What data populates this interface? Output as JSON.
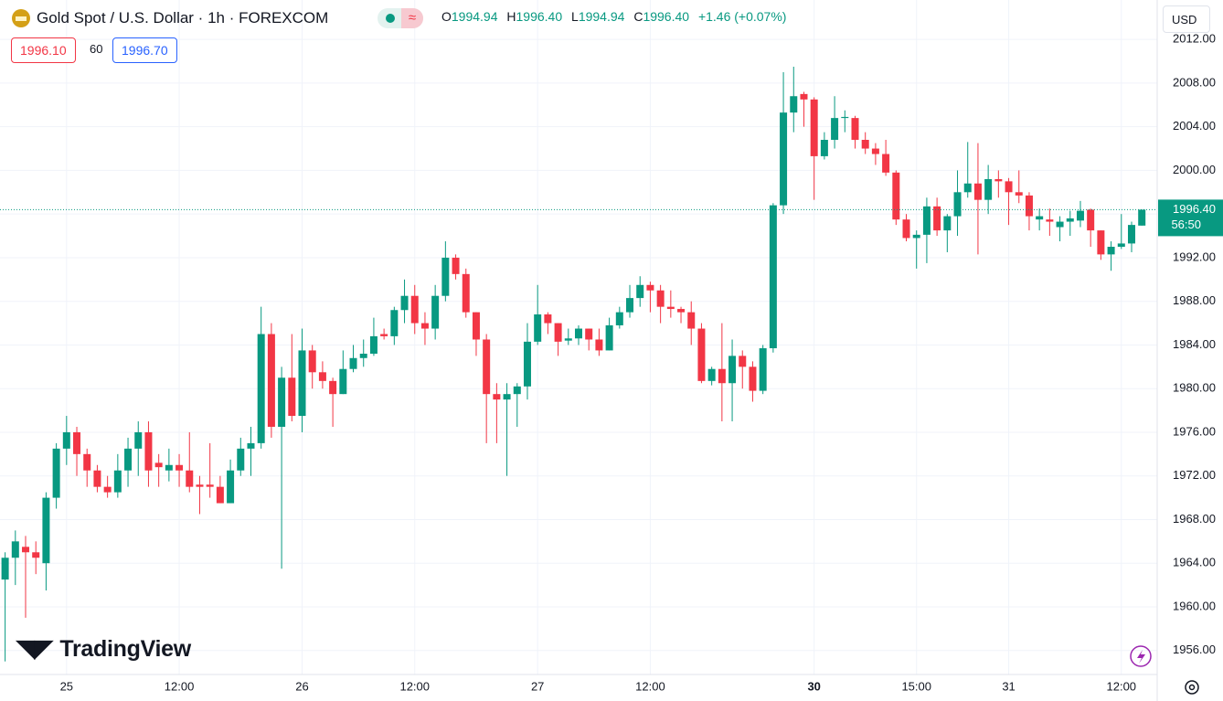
{
  "header": {
    "symbol": "Gold Spot / U.S. Dollar · 1h · FOREXCOM",
    "open_key": "O",
    "open": "1994.94",
    "high_key": "H",
    "high": "1996.40",
    "low_key": "L",
    "low": "1994.94",
    "close_key": "C",
    "close": "1996.40",
    "change": "+1.46 (+0.07%)",
    "bid": "1996.10",
    "spread": "60",
    "ask": "1996.70",
    "currency": "USD",
    "countdown": "56:50",
    "brand": "TradingView"
  },
  "chart_data": {
    "type": "candlestick",
    "up_color": "#089981",
    "down_color": "#f23645",
    "open": [
      1962.5,
      1964.5,
      1965.5,
      1965,
      1964,
      1970,
      1974.5,
      1976,
      1974,
      1972.5,
      1971,
      1970.5,
      1972.5,
      1974.5,
      1976,
      1973.2,
      1972.5,
      1973,
      1972.5,
      1971.2,
      1971.2,
      1971,
      1969.5,
      1972.5,
      1974.5,
      1975,
      1985,
      1976.5,
      1981,
      1977.5,
      1983.5,
      1981.5,
      1980.7,
      1979.5,
      1981.8,
      1982.8,
      1983.2,
      1985,
      1984.8,
      1987.2,
      1988.5,
      1986,
      1985.5,
      1988.5,
      1992,
      1990.5,
      1987,
      1984.5,
      1979.5,
      1979,
      1979.5,
      1980.2,
      1984.3,
      1986.8,
      1986,
      1984.4,
      1984.6,
      1985.5,
      1984.5,
      1983.5,
      1985.8,
      1987,
      1988.3,
      1989.5,
      1989,
      1987.5,
      1987.3,
      1987,
      1985.5,
      1980.7,
      1981.8,
      1980.5,
      1983,
      1982,
      1979.8,
      1983.7,
      1996.8,
      2005.3,
      2007,
      2006.5,
      2001.3,
      2002.8,
      2004.8,
      2004.8,
      2002.8,
      2002,
      2001.5,
      1999.8,
      1995.5,
      1993.8,
      1994.1,
      1996.7,
      1994.5,
      1995.8,
      1998,
      1998.8,
      1997.3,
      1999.2,
      1999,
      1998,
      1997.7,
      1995.5,
      1995.5,
      1994.8,
      1995.3,
      1995.4,
      1996.4,
      1994.5,
      1992.3,
      1993,
      1993.3,
      1994.94
    ],
    "high": [
      1965,
      1967,
      1966.5,
      1966,
      1970.5,
      1975,
      1977.5,
      1976.5,
      1974.5,
      1973,
      1972,
      1974,
      1975.5,
      1977,
      1977,
      1974,
      1974.5,
      1974,
      1976,
      1972,
      1975,
      1972,
      1973.5,
      1975.5,
      1976.5,
      1987.5,
      1986,
      1982,
      1985,
      1985.5,
      1984,
      1982.5,
      1981,
      1983.5,
      1984,
      1984.5,
      1986.5,
      1985.5,
      1987.5,
      1990,
      1989.5,
      1987,
      1989.5,
      1993.5,
      1992.3,
      1991,
      1987,
      1985,
      1980.5,
      1980.5,
      1980.5,
      1986,
      1989.5,
      1987,
      1986,
      1985.5,
      1985.8,
      1985.5,
      1985.5,
      1986.5,
      1987.5,
      1989.5,
      1990.3,
      1989.8,
      1989.5,
      1989,
      1987.5,
      1988,
      1986,
      1982,
      1986,
      1984.5,
      1983.5,
      1982.5,
      1984,
      1997,
      2009,
      2009.5,
      2007.2,
      2006.7,
      2003.5,
      2006.8,
      2005.5,
      2005,
      2003.5,
      2002.5,
      2002.8,
      2000,
      1996,
      1994.5,
      1997.5,
      1997.5,
      1996,
      2000,
      2002.6,
      2002.5,
      2000.5,
      2000,
      1999.3,
      2000,
      1998,
      1996.5,
      1996.5,
      1995.8,
      1996.3,
      1997.2,
      1996.5,
      1994.5,
      1993.5,
      1996,
      1995.3,
      1996.4
    ],
    "low": [
      1955,
      1962,
      1959,
      1963,
      1961.5,
      1969,
      1973,
      1972,
      1971,
      1970.5,
      1970,
      1970,
      1971,
      1972,
      1971,
      1971,
      1971.5,
      1971,
      1970.5,
      1968.5,
      1970,
      1969.5,
      1969.5,
      1972,
      1972,
      1974.5,
      1975.5,
      1963.5,
      1977,
      1976,
      1980,
      1980,
      1976.5,
      1979.5,
      1981.5,
      1982,
      1983,
      1984.5,
      1984,
      1986,
      1985,
      1984,
      1984.5,
      1988,
      1990,
      1986.5,
      1983,
      1975,
      1975,
      1972,
      1976.5,
      1979,
      1984,
      1985,
      1983,
      1984,
      1984,
      1983.5,
      1983,
      1983.5,
      1985.5,
      1986.5,
      1987.5,
      1987,
      1986,
      1986.5,
      1986,
      1984,
      1980.5,
      1980.3,
      1977,
      1977,
      1980,
      1978.8,
      1979.5,
      1983.3,
      1996,
      2003.5,
      2004,
      1997.3,
      2001,
      2002,
      2003.5,
      2002,
      2001.5,
      2000.5,
      1999.5,
      1995,
      1993.5,
      1991,
      1991.5,
      1994,
      1992.5,
      1994,
      1997.5,
      1992.3,
      1996,
      1997.5,
      1995,
      1997,
      1994.5,
      1994.5,
      1994,
      1993.5,
      1994,
      1994.8,
      1993,
      1991.8,
      1990.8,
      1992.8,
      1992.5,
      1994.94
    ],
    "close": [
      1964.5,
      1966,
      1965,
      1964.5,
      1970,
      1974.5,
      1976,
      1974,
      1972.5,
      1971,
      1970.5,
      1972.5,
      1974.5,
      1976,
      1972.5,
      1972.8,
      1973,
      1972.5,
      1971,
      1971,
      1971,
      1969.5,
      1972.5,
      1974.5,
      1975,
      1985,
      1976.5,
      1981,
      1977.5,
      1983.5,
      1981.5,
      1980.7,
      1979.5,
      1981.8,
      1982.8,
      1983.2,
      1984.8,
      1984.8,
      1987.2,
      1988.5,
      1986,
      1985.5,
      1988.5,
      1992,
      1990.5,
      1987,
      1984.5,
      1979.5,
      1979,
      1979.5,
      1980.2,
      1984.3,
      1986.8,
      1986,
      1984.3,
      1984.6,
      1985.5,
      1984.5,
      1983.5,
      1985.8,
      1987,
      1988.3,
      1989.5,
      1989,
      1987.5,
      1987.3,
      1987,
      1985.5,
      1980.7,
      1981.8,
      1980.5,
      1983,
      1982,
      1979.8,
      1983.7,
      1996.8,
      2005.3,
      2006.8,
      2006.5,
      2001.3,
      2002.8,
      2004.8,
      2004.9,
      2002.8,
      2002,
      2001.5,
      1999.8,
      1995.5,
      1993.8,
      1994.1,
      1996.7,
      1994.5,
      1995.8,
      1998,
      1998.8,
      1997.3,
      1999.2,
      1999,
      1998,
      1997.7,
      1995.8,
      1995.8,
      1995.3,
      1995.3,
      1995.6,
      1996.3,
      1994.5,
      1992.3,
      1993,
      1993.3,
      1995,
      1996.4
    ],
    "xlim": [
      -0.5,
      112.5
    ],
    "xticks": [
      {
        "value": 6,
        "label": "25"
      },
      {
        "value": 17,
        "label": "12:00"
      },
      {
        "value": 29,
        "label": "26"
      },
      {
        "value": 40,
        "label": "12:00"
      },
      {
        "value": 52,
        "label": "27"
      },
      {
        "value": 63,
        "label": "12:00"
      },
      {
        "value": 79,
        "label": "30"
      },
      {
        "value": 89,
        "label": "15:00"
      },
      {
        "value": 98,
        "label": "31"
      },
      {
        "value": 109,
        "label": "12:00"
      }
    ],
    "bold_xtick": 6,
    "ylim": [
      1953.8,
      2012.6
    ],
    "yticks": [
      {
        "value": 1956,
        "label": "1956.00"
      },
      {
        "value": 1960,
        "label": "1960.00"
      },
      {
        "value": 1964,
        "label": "1964.00"
      },
      {
        "value": 1968,
        "label": "1968.00"
      },
      {
        "value": 1972,
        "label": "1972.00"
      },
      {
        "value": 1976,
        "label": "1976.00"
      },
      {
        "value": 1980,
        "label": "1980.00"
      },
      {
        "value": 1984,
        "label": "1984.00"
      },
      {
        "value": 1988,
        "label": "1988.00"
      },
      {
        "value": 1992,
        "label": "1992.00"
      },
      {
        "value": 1996,
        "label": "1996.00"
      },
      {
        "value": 2000,
        "label": "2000.00"
      },
      {
        "value": 2004,
        "label": "2004.00"
      },
      {
        "value": 2008,
        "label": "2008.00"
      },
      {
        "value": 2012,
        "label": "2012.00"
      }
    ],
    "grid": true,
    "last_price": {
      "value": 1996.4,
      "label": "1996.40"
    }
  }
}
